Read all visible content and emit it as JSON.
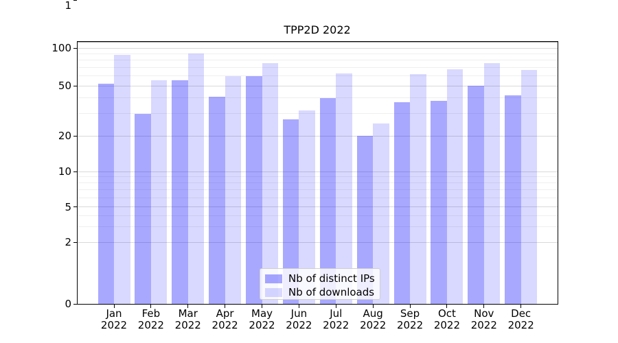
{
  "chart_data": {
    "type": "bar",
    "title": "TPP2D 2022",
    "categories": [
      "Jan",
      "Feb",
      "Mar",
      "Apr",
      "May",
      "Jun",
      "Jul",
      "Aug",
      "Sep",
      "Oct",
      "Nov",
      "Dec"
    ],
    "x_tick_second_line": "2022",
    "series": [
      {
        "name": "Nb of distinct IPs",
        "color": "rgba(0,0,255,0.34)",
        "color_hex": "#a9a9fb",
        "values": [
          52,
          30,
          55,
          41,
          60,
          27,
          40,
          20,
          37,
          38,
          50,
          42
        ]
      },
      {
        "name": "Nb of downloads",
        "color": "rgba(0,0,255,0.15)",
        "color_hex": "#dadafb",
        "values": [
          88,
          55,
          91,
          60,
          76,
          32,
          63,
          25,
          62,
          68,
          76,
          67
        ]
      }
    ],
    "xlabel": "",
    "ylabel": "",
    "yscale": "symlog",
    "yticks": [
      0,
      1,
      2,
      5,
      10,
      20,
      50,
      100
    ],
    "y_minor_ticks": [
      3,
      4,
      6,
      7,
      8,
      9,
      30,
      40,
      60,
      70,
      80,
      90
    ],
    "ylim": [
      0,
      113
    ],
    "grid": true,
    "legend": {
      "position": "lower center"
    },
    "colors": {
      "grid_major": "#d9d9d9",
      "grid_minor": "#efefef",
      "grid_unit_line": "#a8a8a8",
      "axis": "#000000",
      "background": "#ffffff"
    }
  }
}
